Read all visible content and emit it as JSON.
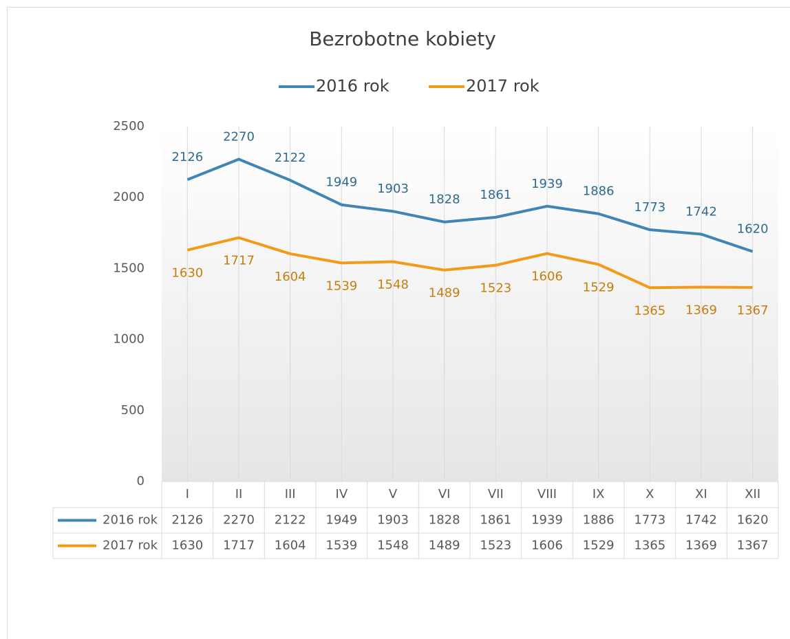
{
  "chart_data": {
    "type": "line",
    "title": "Bezrobotne kobiety",
    "categories": [
      "I",
      "II",
      "III",
      "IV",
      "V",
      "VI",
      "VII",
      "VIII",
      "IX",
      "X",
      "XI",
      "XII"
    ],
    "series": [
      {
        "name": "2016 rok",
        "color": "#4185b5",
        "label_color": "#2e6a8e",
        "values": [
          2126,
          2270,
          2122,
          1949,
          1903,
          1828,
          1861,
          1939,
          1886,
          1773,
          1742,
          1620
        ]
      },
      {
        "name": "2017 rok",
        "color": "#f39a1a",
        "label_color": "#c57e0c",
        "values": [
          1630,
          1717,
          1604,
          1539,
          1548,
          1489,
          1523,
          1606,
          1529,
          1365,
          1369,
          1367
        ]
      }
    ],
    "ylim": [
      0,
      2500
    ],
    "yticks": [
      0,
      500,
      1000,
      1500,
      2000,
      2500
    ],
    "grid": false,
    "data_table": true
  }
}
